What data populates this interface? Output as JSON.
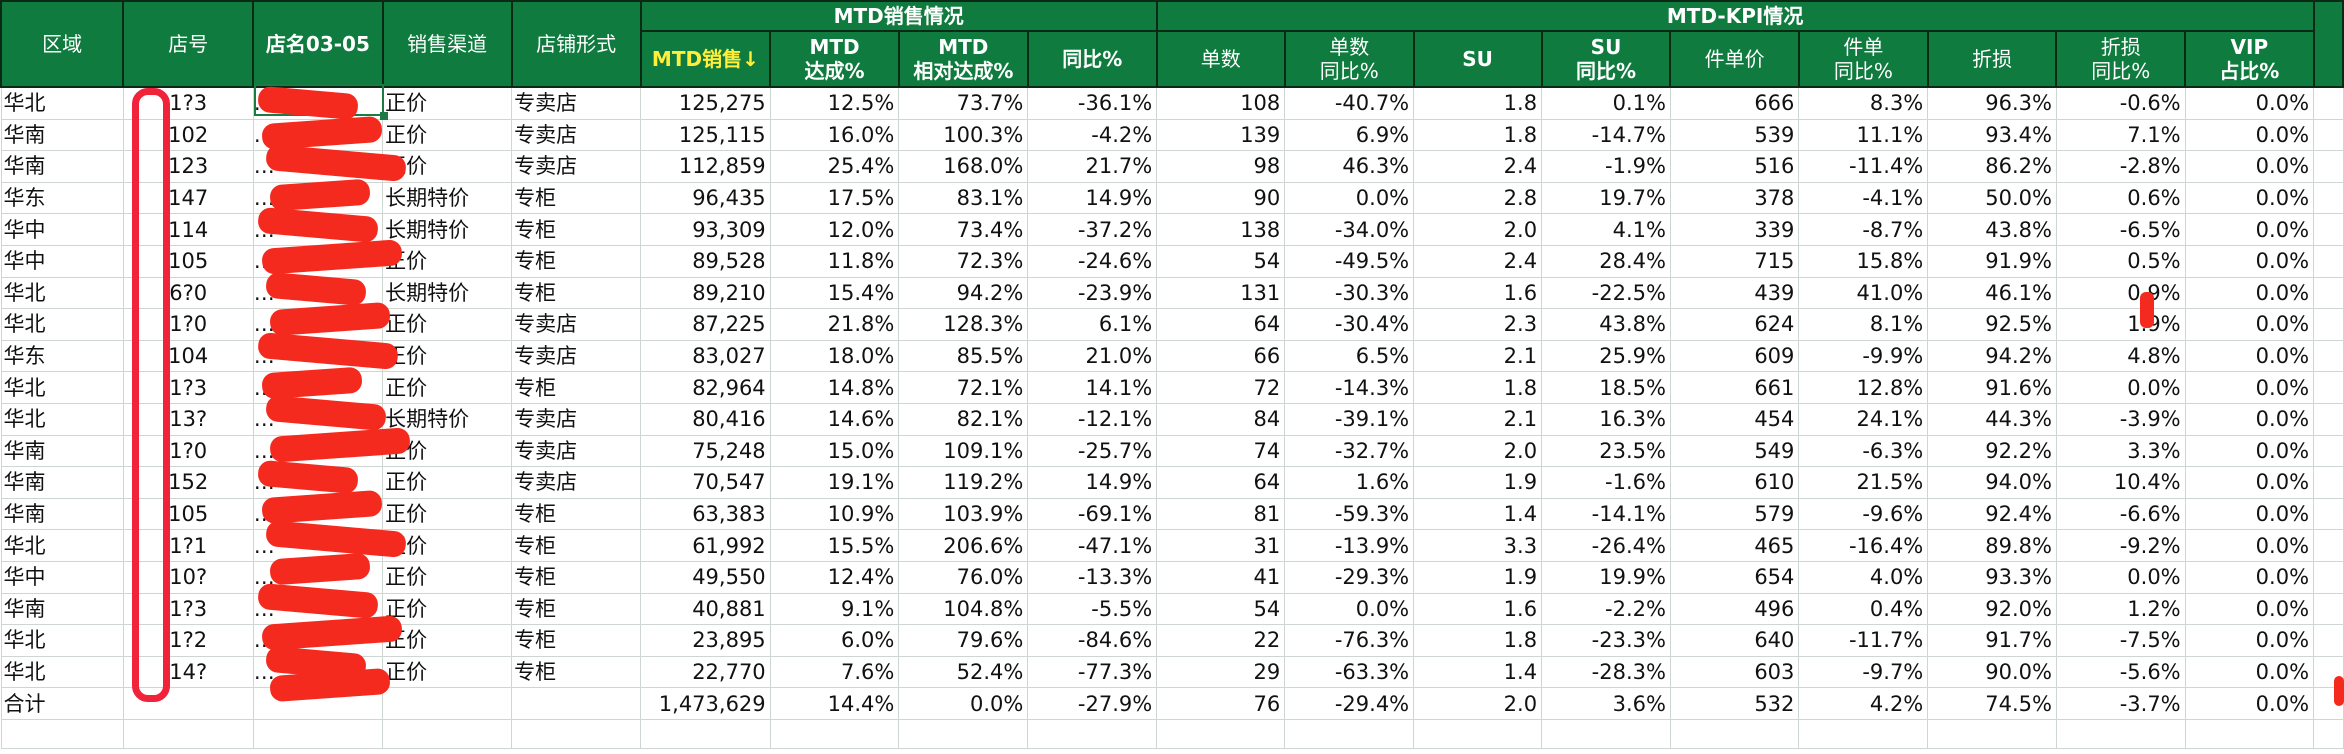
{
  "header": {
    "region": "区域",
    "store_no": "店号",
    "store_name": "店名03-05",
    "channel": "销售渠道",
    "store_type": "店铺形式",
    "group_sales": "MTD销售情况",
    "group_kpi": "MTD-KPI情况",
    "mtd_sales": "MTD销售↓",
    "mtd_rate": "MTD\n达成%",
    "mtd_rel": "MTD\n相对达成%",
    "yoy": "同比%",
    "orders": "单数",
    "orders_yoy": "单数\n同比%",
    "su": "SU",
    "su_yoy": "SU\n同比%",
    "unit_price": "件单价",
    "unit_price_yoy": "件单\n同比%",
    "discount": "折损",
    "discount_yoy": "折损\n同比%",
    "vip": "VIP\n占比%"
  },
  "rows": [
    {
      "region": "华北",
      "no": "1?3",
      "name": "…",
      "channel": "正价",
      "type": "专卖店",
      "sales": "125,275",
      "rate": "12.5%",
      "rel": "73.7%",
      "yoy": "-36.1%",
      "orders": "108",
      "orders_yoy": "-40.7%",
      "su": "1.8",
      "su_yoy": "0.1%",
      "unit": "666",
      "unit_yoy": "8.3%",
      "disc": "96.3%",
      "disc_yoy": "-0.6%",
      "vip": "0.0%"
    },
    {
      "region": "华南",
      "no": "102",
      "name": "…",
      "channel": "正价",
      "type": "专卖店",
      "sales": "125,115",
      "rate": "16.0%",
      "rel": "100.3%",
      "yoy": "-4.2%",
      "orders": "139",
      "orders_yoy": "6.9%",
      "su": "1.8",
      "su_yoy": "-14.7%",
      "unit": "539",
      "unit_yoy": "11.1%",
      "disc": "93.4%",
      "disc_yoy": "7.1%",
      "vip": "0.0%"
    },
    {
      "region": "华南",
      "no": "123",
      "name": "…",
      "channel": "正价",
      "type": "专卖店",
      "sales": "112,859",
      "rate": "25.4%",
      "rel": "168.0%",
      "yoy": "21.7%",
      "orders": "98",
      "orders_yoy": "46.3%",
      "su": "2.4",
      "su_yoy": "-1.9%",
      "unit": "516",
      "unit_yoy": "-11.4%",
      "disc": "86.2%",
      "disc_yoy": "-2.8%",
      "vip": "0.0%"
    },
    {
      "region": "华东",
      "no": "147",
      "name": "…",
      "channel": "长期特价",
      "type": "专柜",
      "sales": "96,435",
      "rate": "17.5%",
      "rel": "83.1%",
      "yoy": "14.9%",
      "orders": "90",
      "orders_yoy": "0.0%",
      "su": "2.8",
      "su_yoy": "19.7%",
      "unit": "378",
      "unit_yoy": "-4.1%",
      "disc": "50.0%",
      "disc_yoy": "0.6%",
      "vip": "0.0%"
    },
    {
      "region": "华中",
      "no": "114",
      "name": "…",
      "channel": "长期特价",
      "type": "专柜",
      "sales": "93,309",
      "rate": "12.0%",
      "rel": "73.4%",
      "yoy": "-37.2%",
      "orders": "138",
      "orders_yoy": "-34.0%",
      "su": "2.0",
      "su_yoy": "4.1%",
      "unit": "339",
      "unit_yoy": "-8.7%",
      "disc": "43.8%",
      "disc_yoy": "-6.5%",
      "vip": "0.0%"
    },
    {
      "region": "华中",
      "no": "105",
      "name": "…",
      "channel": "正价",
      "type": "专柜",
      "sales": "89,528",
      "rate": "11.8%",
      "rel": "72.3%",
      "yoy": "-24.6%",
      "orders": "54",
      "orders_yoy": "-49.5%",
      "su": "2.4",
      "su_yoy": "28.4%",
      "unit": "715",
      "unit_yoy": "15.8%",
      "disc": "91.9%",
      "disc_yoy": "0.5%",
      "vip": "0.0%"
    },
    {
      "region": "华北",
      "no": "6?0",
      "name": "…",
      "channel": "长期特价",
      "type": "专柜",
      "sales": "89,210",
      "rate": "15.4%",
      "rel": "94.2%",
      "yoy": "-23.9%",
      "orders": "131",
      "orders_yoy": "-30.3%",
      "su": "1.6",
      "su_yoy": "-22.5%",
      "unit": "439",
      "unit_yoy": "41.0%",
      "disc": "46.1%",
      "disc_yoy": "0.9%",
      "vip": "0.0%"
    },
    {
      "region": "华北",
      "no": "1?0",
      "name": "…",
      "channel": "正价",
      "type": "专卖店",
      "sales": "87,225",
      "rate": "21.8%",
      "rel": "128.3%",
      "yoy": "6.1%",
      "orders": "64",
      "orders_yoy": "-30.4%",
      "su": "2.3",
      "su_yoy": "43.8%",
      "unit": "624",
      "unit_yoy": "8.1%",
      "disc": "92.5%",
      "disc_yoy": "1.9%",
      "vip": "0.0%"
    },
    {
      "region": "华东",
      "no": "104",
      "name": "…",
      "channel": "正价",
      "type": "专卖店",
      "sales": "83,027",
      "rate": "18.0%",
      "rel": "85.5%",
      "yoy": "21.0%",
      "orders": "66",
      "orders_yoy": "6.5%",
      "su": "2.1",
      "su_yoy": "25.9%",
      "unit": "609",
      "unit_yoy": "-9.9%",
      "disc": "94.2%",
      "disc_yoy": "4.8%",
      "vip": "0.0%"
    },
    {
      "region": "华北",
      "no": "1?3",
      "name": "…",
      "channel": "正价",
      "type": "专柜",
      "sales": "82,964",
      "rate": "14.8%",
      "rel": "72.1%",
      "yoy": "14.1%",
      "orders": "72",
      "orders_yoy": "-14.3%",
      "su": "1.8",
      "su_yoy": "18.5%",
      "unit": "661",
      "unit_yoy": "12.8%",
      "disc": "91.6%",
      "disc_yoy": "0.0%",
      "vip": "0.0%"
    },
    {
      "region": "华北",
      "no": "13?",
      "name": "…",
      "channel": "长期特价",
      "type": "专卖店",
      "sales": "80,416",
      "rate": "14.6%",
      "rel": "82.1%",
      "yoy": "-12.1%",
      "orders": "84",
      "orders_yoy": "-39.1%",
      "su": "2.1",
      "su_yoy": "16.3%",
      "unit": "454",
      "unit_yoy": "24.1%",
      "disc": "44.3%",
      "disc_yoy": "-3.9%",
      "vip": "0.0%"
    },
    {
      "region": "华南",
      "no": "1?0",
      "name": "…",
      "channel": "正价",
      "type": "专卖店",
      "sales": "75,248",
      "rate": "15.0%",
      "rel": "109.1%",
      "yoy": "-25.7%",
      "orders": "74",
      "orders_yoy": "-32.7%",
      "su": "2.0",
      "su_yoy": "23.5%",
      "unit": "549",
      "unit_yoy": "-6.3%",
      "disc": "92.2%",
      "disc_yoy": "3.3%",
      "vip": "0.0%"
    },
    {
      "region": "华南",
      "no": "152",
      "name": "…",
      "channel": "正价",
      "type": "专卖店",
      "sales": "70,547",
      "rate": "19.1%",
      "rel": "119.2%",
      "yoy": "14.9%",
      "orders": "64",
      "orders_yoy": "1.6%",
      "su": "1.9",
      "su_yoy": "-1.6%",
      "unit": "610",
      "unit_yoy": "21.5%",
      "disc": "94.0%",
      "disc_yoy": "10.4%",
      "vip": "0.0%"
    },
    {
      "region": "华南",
      "no": "105",
      "name": "…",
      "channel": "正价",
      "type": "专柜",
      "sales": "63,383",
      "rate": "10.9%",
      "rel": "103.9%",
      "yoy": "-69.1%",
      "orders": "81",
      "orders_yoy": "-59.3%",
      "su": "1.4",
      "su_yoy": "-14.1%",
      "unit": "579",
      "unit_yoy": "-9.6%",
      "disc": "92.4%",
      "disc_yoy": "-6.6%",
      "vip": "0.0%"
    },
    {
      "region": "华北",
      "no": "1?1",
      "name": "…",
      "channel": "正价",
      "type": "专柜",
      "sales": "61,992",
      "rate": "15.5%",
      "rel": "206.6%",
      "yoy": "-47.1%",
      "orders": "31",
      "orders_yoy": "-13.9%",
      "su": "3.3",
      "su_yoy": "-26.4%",
      "unit": "465",
      "unit_yoy": "-16.4%",
      "disc": "89.8%",
      "disc_yoy": "-9.2%",
      "vip": "0.0%"
    },
    {
      "region": "华中",
      "no": "10?",
      "name": "…",
      "channel": "正价",
      "type": "专柜",
      "sales": "49,550",
      "rate": "12.4%",
      "rel": "76.0%",
      "yoy": "-13.3%",
      "orders": "41",
      "orders_yoy": "-29.3%",
      "su": "1.9",
      "su_yoy": "19.9%",
      "unit": "654",
      "unit_yoy": "4.0%",
      "disc": "93.3%",
      "disc_yoy": "0.0%",
      "vip": "0.0%"
    },
    {
      "region": "华南",
      "no": "1?3",
      "name": "…",
      "channel": "正价",
      "type": "专柜",
      "sales": "40,881",
      "rate": "9.1%",
      "rel": "104.8%",
      "yoy": "-5.5%",
      "orders": "54",
      "orders_yoy": "0.0%",
      "su": "1.6",
      "su_yoy": "-2.2%",
      "unit": "496",
      "unit_yoy": "0.4%",
      "disc": "92.0%",
      "disc_yoy": "1.2%",
      "vip": "0.0%"
    },
    {
      "region": "华北",
      "no": "1?2",
      "name": "…",
      "channel": "正价",
      "type": "专柜",
      "sales": "23,895",
      "rate": "6.0%",
      "rel": "79.6%",
      "yoy": "-84.6%",
      "orders": "22",
      "orders_yoy": "-76.3%",
      "su": "1.8",
      "su_yoy": "-23.3%",
      "unit": "640",
      "unit_yoy": "-11.7%",
      "disc": "91.7%",
      "disc_yoy": "-7.5%",
      "vip": "0.0%"
    },
    {
      "region": "华北",
      "no": "14?",
      "name": "…",
      "channel": "正价",
      "type": "专柜",
      "sales": "22,770",
      "rate": "7.6%",
      "rel": "52.4%",
      "yoy": "-77.3%",
      "orders": "29",
      "orders_yoy": "-63.3%",
      "su": "1.4",
      "su_yoy": "-28.3%",
      "unit": "603",
      "unit_yoy": "-9.7%",
      "disc": "90.0%",
      "disc_yoy": "-5.6%",
      "vip": "0.0%"
    }
  ],
  "total": {
    "region": "合计",
    "no": "",
    "name": "",
    "channel": "",
    "type": "",
    "sales": "1,473,629",
    "rate": "14.4%",
    "rel": "0.0%",
    "yoy": "-27.9%",
    "orders": "76",
    "orders_yoy": "-29.4%",
    "su": "2.0",
    "su_yoy": "3.6%",
    "unit": "532",
    "unit_yoy": "4.2%",
    "disc": "74.5%",
    "disc_yoy": "-3.7%",
    "vip": "0.0%"
  },
  "colors": {
    "header_bg": "#0f7b3e",
    "header_text": "#ffffff",
    "sort_header_text": "#ffef3a",
    "redaction": "#f42a1e"
  }
}
